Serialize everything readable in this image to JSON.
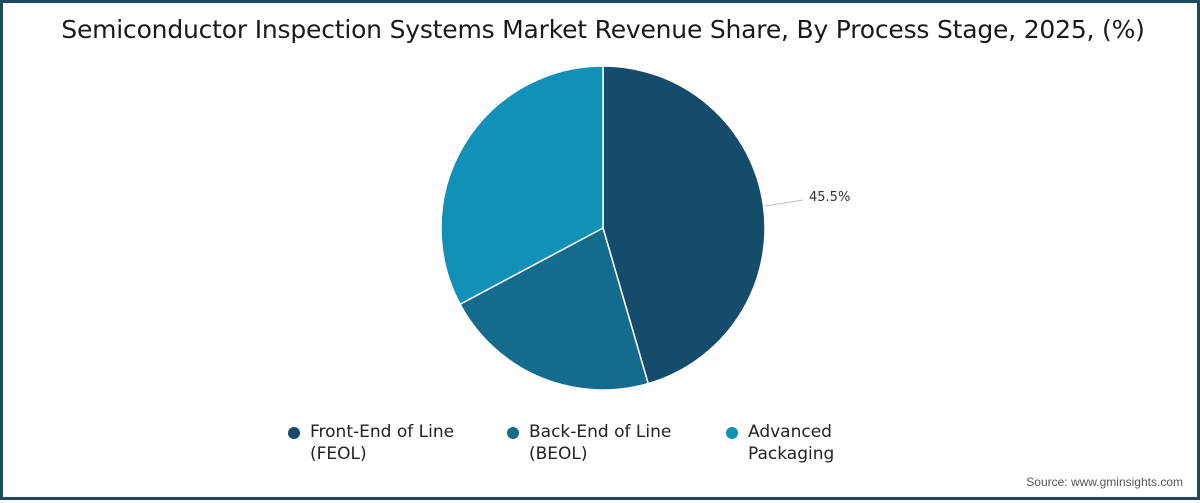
{
  "title": "Semiconductor Inspection Systems Market Revenue Share, By Process Stage, 2025, (%)",
  "source": "Source: www.gminsights.com",
  "labels": {
    "feol_value": "45.5%"
  },
  "legend": [
    {
      "label": "Front-End of Line\n(FEOL)",
      "color": "#154b6b"
    },
    {
      "label": "Back-End of Line\n(BEOL)",
      "color": "#136c8e"
    },
    {
      "label": "Advanced\nPackaging",
      "color": "#1190b8"
    }
  ],
  "colors": {
    "border": "#1d4a5e",
    "feol": "#154b6b",
    "beol": "#136c8e",
    "advanced_packaging": "#1190b8"
  },
  "chart_data": {
    "type": "pie",
    "title": "Semiconductor Inspection Systems Market Revenue Share, By Process Stage, 2025, (%)",
    "categories": [
      "Front-End of Line (FEOL)",
      "Back-End of Line (BEOL)",
      "Advanced Packaging"
    ],
    "values": [
      45.5,
      21.7,
      32.8
    ],
    "labeled_values": {
      "Front-End of Line (FEOL)": 45.5
    },
    "start_angle": "top (12 o'clock), clockwise",
    "legend_position": "bottom",
    "colors": [
      "#154b6b",
      "#136c8e",
      "#1190b8"
    ]
  }
}
